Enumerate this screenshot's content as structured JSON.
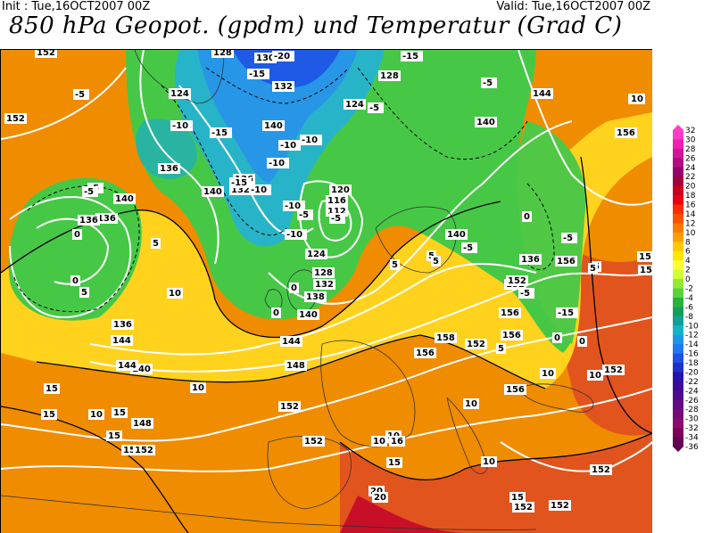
{
  "header": {
    "init": "Init : Tue,16OCT2007 00Z",
    "valid": "Valid: Tue,16OCT2007 00Z",
    "title": "850 hPa Geopot. (gpdm) und Temperatur (Grad C)"
  },
  "legend": {
    "ticks": [
      "32",
      "30",
      "28",
      "26",
      "24",
      "22",
      "20",
      "18",
      "16",
      "14",
      "12",
      "10",
      "8",
      "6",
      "4",
      "2",
      "0",
      "-2",
      "-4",
      "-6",
      "-8",
      "-10",
      "-12",
      "-14",
      "-16",
      "-18",
      "-20",
      "-22",
      "-24",
      "-26",
      "-28",
      "-30",
      "-32",
      "-34",
      "-36"
    ],
    "colors": [
      "#ff3cc8",
      "#f01eb4",
      "#d2149b",
      "#b40a82",
      "#96006e",
      "#a0003c",
      "#c8001e",
      "#e60014",
      "#ff2a00",
      "#ff5000",
      "#ff7800",
      "#ffa000",
      "#ffc800",
      "#ffe600",
      "#ffff32",
      "#d2ff32",
      "#96e632",
      "#5ad23c",
      "#28b43c",
      "#14a05a",
      "#14a09a",
      "#14b4c8",
      "#1e96e6",
      "#1e78f0",
      "#1e50e6",
      "#1e32c8",
      "#2814aa",
      "#3c0a96",
      "#500a8c",
      "#640a82",
      "#780a78",
      "#8c0a6e",
      "#7d005a",
      "#640050"
    ]
  },
  "map_labels": {
    "geopotential": [
      "152",
      "152",
      "128",
      "130",
      "128",
      "124",
      "132",
      "140",
      "144",
      "156",
      "140",
      "136",
      "124",
      "136",
      "132",
      "140",
      "120",
      "116",
      "112",
      "140",
      "136",
      "136",
      "140",
      "136",
      "124",
      "128",
      "132",
      "138",
      "140",
      "144",
      "148",
      "152",
      "152",
      "156",
      "156",
      "158",
      "156",
      "152",
      "156",
      "156",
      "152",
      "152",
      "152",
      "152",
      "144",
      "140",
      "144",
      "152",
      "148",
      "152",
      "152",
      "152",
      "136"
    ],
    "temperature": [
      "-5",
      "-10",
      "-15",
      "-20",
      "-15",
      "-10",
      "-15",
      "-10",
      "-5",
      "-5",
      "-10",
      "-15",
      "-10",
      "-5",
      "-10",
      "-5",
      "-10",
      "0",
      "-5",
      "0",
      "5",
      "0",
      "5",
      "10",
      "5",
      "0",
      "-5",
      "-5",
      "0",
      "5",
      "10",
      "15",
      "10",
      "15",
      "15",
      "10",
      "15",
      "10",
      "16",
      "10",
      "15",
      "20",
      "20",
      "10",
      "10",
      "15",
      "5",
      "0",
      "5",
      "10",
      "10",
      "-5",
      "10",
      "15",
      "15",
      "-5",
      "-15",
      "0",
      "5",
      "5"
    ]
  }
}
